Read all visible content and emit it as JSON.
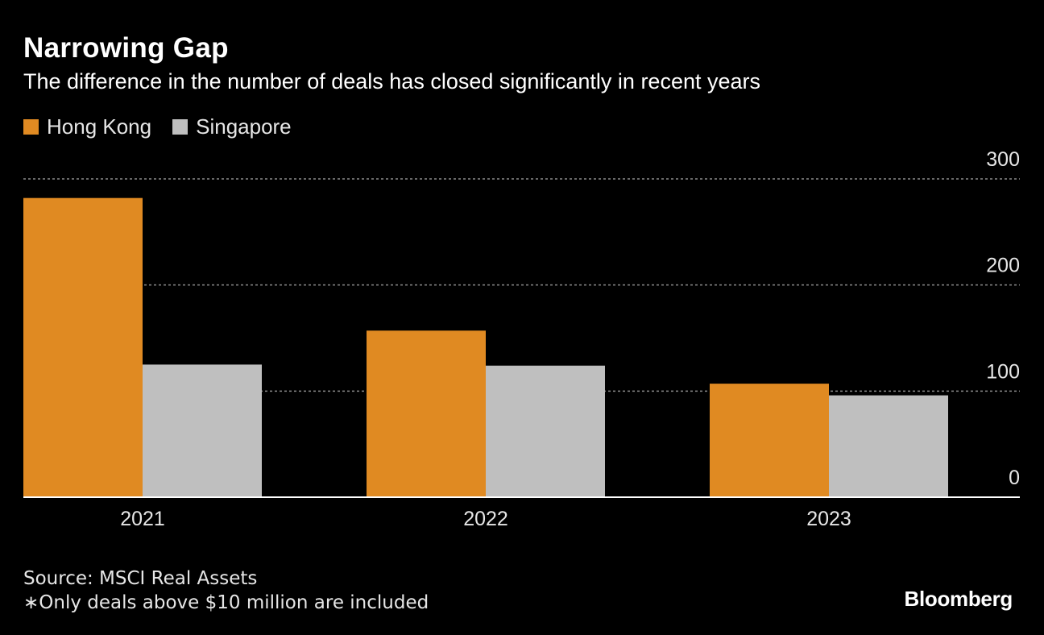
{
  "header": {
    "title": "Narrowing Gap",
    "subtitle": "The difference in the number of deals has closed significantly in recent years"
  },
  "legend": {
    "items": [
      {
        "label": "Hong Kong",
        "color": "#E08A22"
      },
      {
        "label": "Singapore",
        "color": "#BFBFBF"
      }
    ]
  },
  "footer": {
    "source": "Source: MSCI Real Assets",
    "note": "∗Only deals above $10 million are included",
    "brand": "Bloomberg"
  },
  "chart_data": {
    "type": "bar",
    "title": "Narrowing Gap",
    "subtitle": "The difference in the number of deals has closed significantly in recent years",
    "categories": [
      "2021",
      "2022",
      "2023"
    ],
    "series": [
      {
        "name": "Hong Kong",
        "color": "#E08A22",
        "values": [
          282,
          157,
          107
        ]
      },
      {
        "name": "Singapore",
        "color": "#BFBFBF",
        "values": [
          125,
          124,
          96
        ]
      }
    ],
    "xlabel": "",
    "ylabel": "",
    "ylim": [
      0,
      300
    ],
    "yticks": [
      0,
      100,
      200,
      300
    ],
    "grid": true,
    "y_axis_side": "right",
    "legend_position": "top-left"
  }
}
